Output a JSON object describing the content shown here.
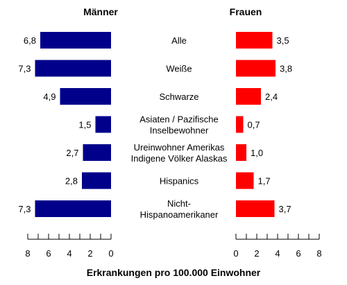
{
  "chart_data": {
    "type": "bar",
    "layout": "back-to-back horizontal",
    "headers": {
      "left": "Männer",
      "right": "Frauen"
    },
    "xlabel": "Erkrankungen pro 100.000 Einwohner",
    "xlim": [
      0,
      8
    ],
    "ticks": [
      0,
      2,
      4,
      6,
      8
    ],
    "categories": [
      [
        "Alle"
      ],
      [
        "Weiße"
      ],
      [
        "Schwarze"
      ],
      [
        "Asiaten / Pazifische",
        "Inselbewohner"
      ],
      [
        "Ureinwohner Amerikas",
        "Indigene Völker Alaskas"
      ],
      [
        "Hispanics"
      ],
      [
        "Nicht-",
        "Hispanoamerikaner"
      ]
    ],
    "series": [
      {
        "name": "Männer",
        "color": "#00008b",
        "values": [
          6.8,
          7.3,
          4.9,
          1.5,
          2.7,
          2.8,
          7.3
        ],
        "labels": [
          "6,8",
          "7,3",
          "4,9",
          "1,5",
          "2,7",
          "2,8",
          "7,3"
        ]
      },
      {
        "name": "Frauen",
        "color": "#ff0000",
        "values": [
          3.5,
          3.8,
          2.4,
          0.7,
          1.0,
          1.7,
          3.7
        ],
        "labels": [
          "3,5",
          "3,8",
          "2,4",
          "0,7",
          "1,0",
          "1,7",
          "3,7"
        ]
      }
    ],
    "grid": false
  }
}
